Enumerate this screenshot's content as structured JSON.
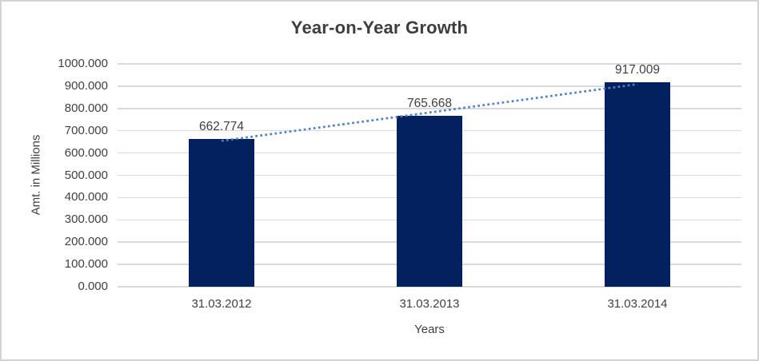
{
  "window": {
    "background": "#ffffff",
    "border_color": "#d3d3d3"
  },
  "chart_data": {
    "type": "bar",
    "title": "Year-on-Year Growth",
    "categories": [
      "31.03.2012",
      "31.03.2013",
      "31.03.2014"
    ],
    "values": [
      662.774,
      765.668,
      917.009
    ],
    "data_labels": [
      "662.774",
      "765.668",
      "917.009"
    ],
    "xlabel": "Years",
    "ylabel": "Amt. in Millions",
    "ylim": [
      0,
      1000
    ],
    "ytick_step": 100,
    "ytick_labels": [
      "1000.000",
      "900.000",
      "800.000",
      "700.000",
      "600.000",
      "500.000",
      "400.000",
      "300.000",
      "200.000",
      "100.000",
      "0.000"
    ],
    "grid": "horizontal",
    "legend": "none",
    "trendline": {
      "type": "linear",
      "style": "dotted"
    },
    "colors": {
      "bar": "#03205f",
      "trendline": "#4e82c4",
      "gridline": "#d9d9d9",
      "text": "#404040",
      "title_text": "#3d3d3d"
    }
  }
}
